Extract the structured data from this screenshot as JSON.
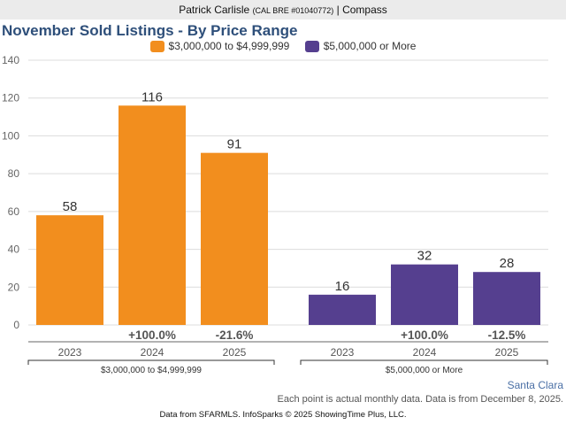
{
  "header": {
    "agent_name": "Patrick Carlisle",
    "license": "(CAL BRE #01040772)",
    "brokerage": "| Compass"
  },
  "chart_data": {
    "type": "bar",
    "title": "November Sold Listings - By Price Range",
    "xlabel": "",
    "ylabel": "",
    "ylim": [
      0,
      140
    ],
    "yticks": [
      0,
      20,
      40,
      60,
      80,
      100,
      120,
      140
    ],
    "grid": true,
    "legend_position": "top-center",
    "groups": [
      {
        "name": "$3,000,000 to $4,999,999",
        "color": "#f28e1e",
        "categories": [
          "2023",
          "2024",
          "2025"
        ],
        "values": [
          58,
          116,
          91
        ],
        "changes": [
          "",
          "+100.0%",
          "-21.6%"
        ]
      },
      {
        "name": "$5,000,000 or More",
        "color": "#553f8f",
        "categories": [
          "2023",
          "2024",
          "2025"
        ],
        "values": [
          16,
          32,
          28
        ],
        "changes": [
          "",
          "+100.0%",
          "-12.5%"
        ]
      }
    ]
  },
  "footer": {
    "region": "Santa Clara",
    "note": "Each point is actual monthly data. Data is from December 8, 2025.",
    "credit": "Data from SFARMLS. InfoSparks © 2025 ShowingTime Plus, LLC."
  }
}
